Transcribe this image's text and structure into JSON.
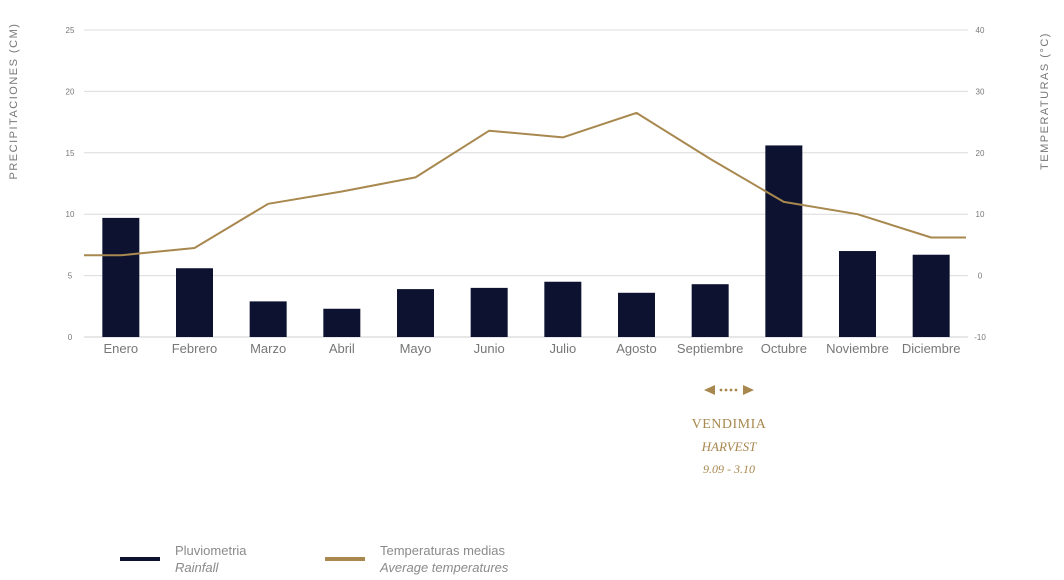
{
  "chart_data": {
    "type": "bar+line",
    "categories": [
      "Enero",
      "Febrero",
      "Marzo",
      "Abril",
      "Mayo",
      "Junio",
      "Julio",
      "Agosto",
      "Septiembre",
      "Octubre",
      "Noviembre",
      "Diciembre"
    ],
    "series": [
      {
        "name": "Pluviometria",
        "name_en": "Rainfall",
        "type": "bar",
        "axis": "left",
        "color": "#0c1230",
        "values": [
          9.7,
          5.6,
          2.9,
          2.3,
          3.9,
          4.0,
          4.5,
          3.6,
          4.3,
          15.6,
          7.0,
          6.7
        ]
      },
      {
        "name": "Temperaturas medias",
        "name_en": "Average temperatures",
        "type": "line",
        "axis": "right",
        "color": "#a8884f",
        "values": [
          3.3,
          4.5,
          11.7,
          13.7,
          16.0,
          23.6,
          22.5,
          26.5,
          19.0,
          12.0,
          10.0,
          6.2
        ]
      }
    ],
    "ylabel_left": "PRECIPITACIONES (CM)",
    "ylabel_right": "TEMPERATURAS (°C)",
    "ylim_left": [
      0,
      25
    ],
    "yticks_left": [
      "0",
      "5",
      "10",
      "15",
      "20",
      "25"
    ],
    "ylim_right": [
      -10,
      40
    ],
    "yticks_right": [
      "-10",
      "0",
      "10",
      "20",
      "30",
      "40"
    ],
    "grid": true,
    "legend_position": "bottom-left"
  },
  "harvest": {
    "title": "VENDIMIA",
    "subtitle": "HARVEST",
    "dates": "9.09 - 3.10",
    "arrow_icon": "double-arrow-icon",
    "color": "#a8884f"
  },
  "legend": {
    "rainfall": {
      "label": "Pluviometria",
      "sublabel": "Rainfall",
      "color": "#0c1230"
    },
    "temperature": {
      "label": "Temperaturas medias",
      "sublabel": "Average temperatures",
      "color": "#a8884f"
    }
  }
}
